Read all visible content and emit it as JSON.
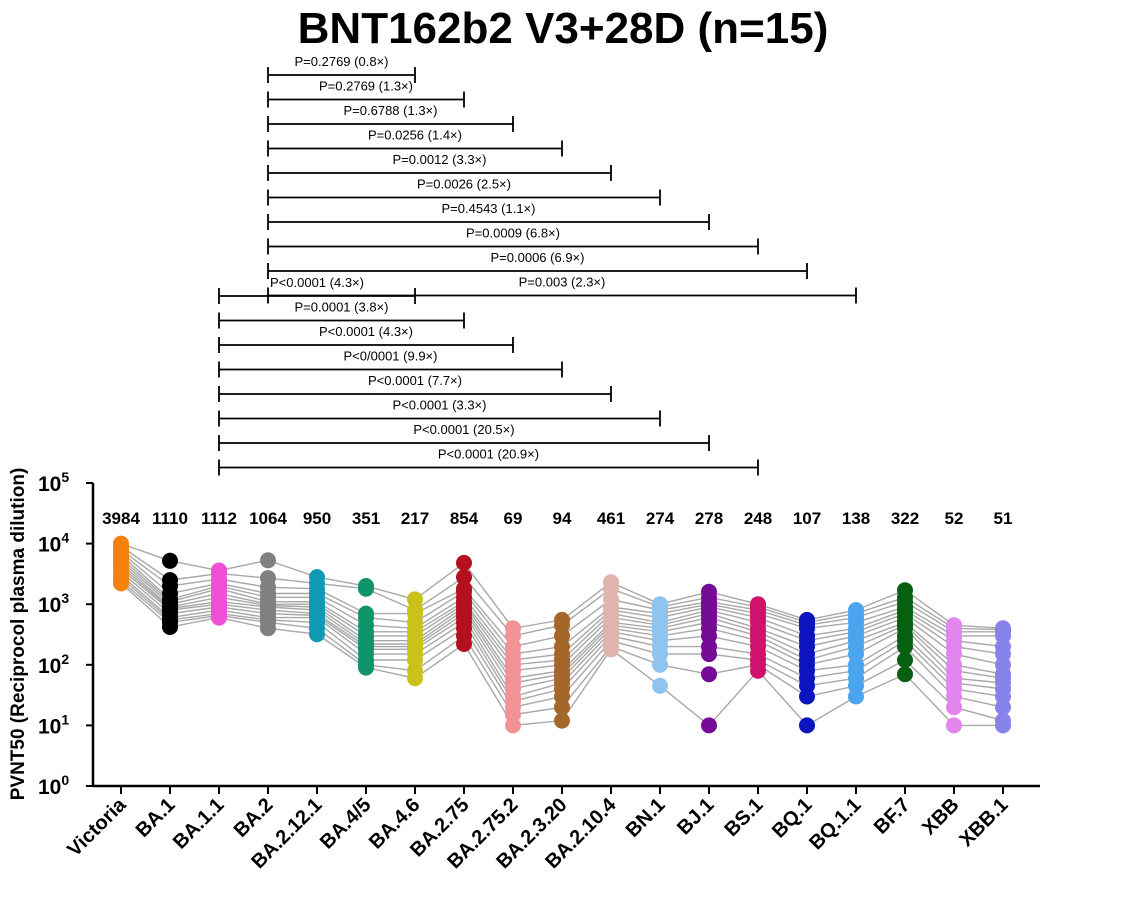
{
  "chart_data": {
    "type": "scatter",
    "title": "BNT162b2 V3+28D (n=15)",
    "ylabel": "PVNT50 (Reciprocol plasma dilution)",
    "xlabel": "",
    "yscale": "log",
    "ylim": [
      1,
      100000
    ],
    "yticks": [
      {
        "base": "10",
        "exp": "0"
      },
      {
        "base": "10",
        "exp": "1"
      },
      {
        "base": "10",
        "exp": "2"
      },
      {
        "base": "10",
        "exp": "3"
      },
      {
        "base": "10",
        "exp": "4"
      },
      {
        "base": "10",
        "exp": "5"
      }
    ],
    "categories": [
      "Victoria",
      "BA.1",
      "BA.1.1",
      "BA.2",
      "BA.2.12.1",
      "BA.4/5",
      "BA.4.6",
      "BA.2.75",
      "BA.2.75.2",
      "BA.2.3.20",
      "BA.2.10.4",
      "BN.1",
      "BJ.1",
      "BS.1",
      "BQ.1",
      "BQ.1.1",
      "BF.7",
      "XBB",
      "XBB.1"
    ],
    "colors": [
      "#f5820d",
      "#000000",
      "#f04fd6",
      "#808080",
      "#1199b3",
      "#11946b",
      "#c9c21a",
      "#b5101e",
      "#f29393",
      "#a5662a",
      "#dfb4ae",
      "#8fc4ee",
      "#760b98",
      "#d0126d",
      "#0b14bf",
      "#4aa4ee",
      "#075f10",
      "#e285ee",
      "#8783ea"
    ],
    "gmt_labels": [
      "3984",
      "1110",
      "1112",
      "1064",
      "950",
      "351",
      "217",
      "854",
      "69",
      "94",
      "461",
      "274",
      "278",
      "248",
      "107",
      "138",
      "322",
      "52",
      "51"
    ],
    "series": [
      {
        "name": "Victoria",
        "values": [
          10000,
          9000,
          8000,
          7200,
          6500,
          5800,
          5200,
          4700,
          4200,
          3800,
          3400,
          3000,
          2700,
          2400,
          2200
        ]
      },
      {
        "name": "BA.1",
        "values": [
          5200,
          2500,
          2000,
          1500,
          1200,
          1100,
          1000,
          900,
          850,
          800,
          700,
          600,
          550,
          500,
          420
        ]
      },
      {
        "name": "BA.1.1",
        "values": [
          3600,
          3200,
          2600,
          2200,
          2000,
          1800,
          1500,
          1300,
          1100,
          1000,
          900,
          800,
          700,
          650,
          600
        ]
      },
      {
        "name": "BA.2",
        "values": [
          5300,
          2700,
          1900,
          1500,
          1300,
          1100,
          1000,
          950,
          900,
          800,
          700,
          600,
          550,
          500,
          400
        ]
      },
      {
        "name": "BA.2.12.1",
        "values": [
          2800,
          2200,
          1800,
          1500,
          1300,
          1100,
          1000,
          900,
          800,
          700,
          650,
          600,
          500,
          400,
          320
        ]
      },
      {
        "name": "BA.4/5",
        "values": [
          2000,
          1800,
          700,
          600,
          450,
          350,
          300,
          250,
          220,
          200,
          180,
          150,
          120,
          100,
          90
        ]
      },
      {
        "name": "BA.4.6",
        "values": [
          1200,
          800,
          700,
          500,
          400,
          350,
          300,
          250,
          220,
          200,
          180,
          150,
          120,
          80,
          60
        ]
      },
      {
        "name": "BA.2.75",
        "values": [
          4800,
          2800,
          1800,
          1600,
          1300,
          1100,
          1000,
          900,
          800,
          700,
          600,
          500,
          400,
          300,
          220
        ]
      },
      {
        "name": "BA.2.75.2",
        "values": [
          400,
          300,
          200,
          150,
          120,
          100,
          80,
          60,
          50,
          40,
          30,
          25,
          20,
          15,
          10
        ]
      },
      {
        "name": "BA.2.3.20",
        "values": [
          550,
          450,
          300,
          200,
          150,
          120,
          100,
          80,
          70,
          60,
          50,
          40,
          30,
          20,
          12
        ]
      },
      {
        "name": "BA.2.10.4",
        "values": [
          2300,
          1800,
          1200,
          900,
          800,
          700,
          600,
          500,
          450,
          400,
          350,
          300,
          250,
          200,
          180
        ]
      },
      {
        "name": "BN.1",
        "values": [
          1000,
          900,
          800,
          700,
          600,
          500,
          450,
          400,
          350,
          300,
          250,
          200,
          150,
          100,
          45
        ]
      },
      {
        "name": "BJ.1",
        "values": [
          1600,
          1300,
          1100,
          1000,
          900,
          800,
          700,
          600,
          500,
          400,
          300,
          200,
          150,
          70,
          10
        ]
      },
      {
        "name": "BS.1",
        "values": [
          1000,
          900,
          800,
          700,
          600,
          500,
          400,
          350,
          300,
          250,
          200,
          150,
          120,
          100,
          80
        ]
      },
      {
        "name": "BQ.1",
        "values": [
          550,
          500,
          450,
          400,
          300,
          250,
          200,
          150,
          120,
          100,
          80,
          60,
          45,
          30,
          10
        ]
      },
      {
        "name": "BQ.1.1",
        "values": [
          800,
          700,
          600,
          500,
          400,
          350,
          300,
          250,
          200,
          150,
          100,
          80,
          60,
          45,
          30
        ]
      },
      {
        "name": "BF.7",
        "values": [
          1700,
          1300,
          1100,
          900,
          800,
          700,
          600,
          500,
          450,
          400,
          300,
          250,
          200,
          120,
          70
        ]
      },
      {
        "name": "XBB",
        "values": [
          450,
          400,
          350,
          300,
          250,
          200,
          150,
          100,
          80,
          60,
          50,
          40,
          30,
          20,
          10
        ]
      },
      {
        "name": "XBB.1",
        "values": [
          400,
          380,
          350,
          300,
          200,
          150,
          100,
          70,
          60,
          50,
          40,
          30,
          20,
          12,
          10
        ]
      }
    ],
    "comparisons": [
      {
        "from": "BA.2",
        "to": "BA.4.6",
        "label": "P=0.2769 (0.8×)"
      },
      {
        "from": "BA.2",
        "to": "BA.2.75",
        "label": "P=0.2769 (1.3×)"
      },
      {
        "from": "BA.2",
        "to": "BA.2.75.2",
        "label": "P=0.6788 (1.3×)"
      },
      {
        "from": "BA.2",
        "to": "BA.2.3.20",
        "label": "P=0.0256 (1.4×)"
      },
      {
        "from": "BA.2",
        "to": "BA.2.10.4",
        "label": "P=0.0012 (3.3×)"
      },
      {
        "from": "BA.2",
        "to": "BN.1",
        "label": "P=0.0026 (2.5×)"
      },
      {
        "from": "BA.2",
        "to": "BJ.1",
        "label": "P=0.4543 (1.1×)"
      },
      {
        "from": "BA.2",
        "to": "BS.1",
        "label": "P=0.0009 (6.8×)"
      },
      {
        "from": "BA.2",
        "to": "BQ.1",
        "label": "P=0.0006 (6.9×)"
      },
      {
        "from": "BA.2",
        "to": "BQ.1.1",
        "label": "P=0.003 (2.3×)"
      },
      {
        "from": "BA.1.1",
        "to": "BA.4.6",
        "label": "P<0.0001 (4.3×)"
      },
      {
        "from": "BA.1.1",
        "to": "BA.2.75",
        "label": "P=0.0001 (3.8×)"
      },
      {
        "from": "BA.1.1",
        "to": "BA.2.75.2",
        "label": "P<0.0001 (4.3×)"
      },
      {
        "from": "BA.1.1",
        "to": "BA.2.3.20",
        "label": "P<0/0001 (9.9×)"
      },
      {
        "from": "BA.1.1",
        "to": "BA.2.10.4",
        "label": "P<0.0001 (7.7×)"
      },
      {
        "from": "BA.1.1",
        "to": "BN.1",
        "label": "P<0.0001 (3.3×)"
      },
      {
        "from": "BA.1.1",
        "to": "BJ.1",
        "label": "P<0.0001 (20.5×)"
      },
      {
        "from": "BA.1.1",
        "to": "BS.1",
        "label": "P<0.0001 (20.9×)"
      }
    ]
  }
}
